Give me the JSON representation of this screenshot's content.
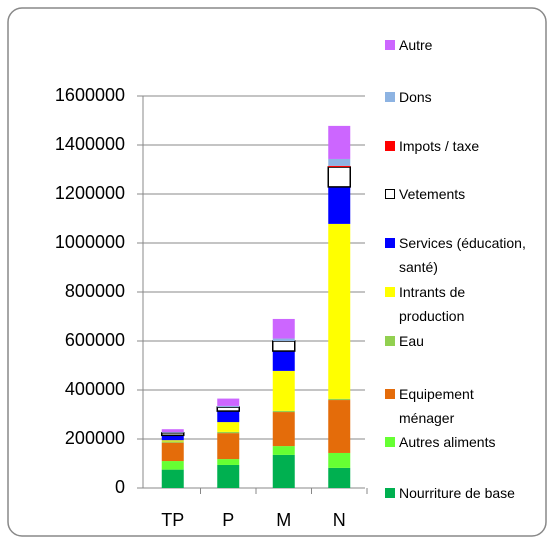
{
  "chart_data": {
    "type": "stacked_bar",
    "categories": [
      "TP",
      "P",
      "M",
      "N"
    ],
    "series": [
      {
        "name": "Nourriture de base",
        "color": "#00b050",
        "values": [
          75000,
          94000,
          135000,
          82000
        ]
      },
      {
        "name": "Autres aliments",
        "color": "#66ff33",
        "values": [
          35000,
          24000,
          36000,
          61000
        ]
      },
      {
        "name": "Equipement ménager",
        "color": "#e46c0a",
        "values": [
          75000,
          106000,
          139000,
          216000
        ]
      },
      {
        "name": "Eau",
        "color": "#92d050",
        "values": [
          5000,
          5000,
          5000,
          5000
        ]
      },
      {
        "name": "Intrants de production",
        "color": "#ffff00",
        "values": [
          5000,
          40000,
          163000,
          714000
        ]
      },
      {
        "name": "Services (éducation, santé)",
        "color": "#0000ff",
        "values": [
          20000,
          45000,
          81000,
          151000
        ]
      },
      {
        "name": "Vetements",
        "color": "#ffffff",
        "values": [
          10000,
          16000,
          41000,
          81000
        ]
      },
      {
        "name": "Impots / taxe",
        "color": "#ff0000",
        "values": [
          0,
          0,
          0,
          5000
        ]
      },
      {
        "name": "Dons",
        "color": "#8db3e2",
        "values": [
          3000,
          5000,
          10000,
          28000
        ]
      },
      {
        "name": "Autre",
        "color": "#cc66ff",
        "values": [
          12000,
          30000,
          80000,
          135000
        ]
      }
    ],
    "ylim": [
      0,
      1600000
    ],
    "yticks": [
      0,
      200000,
      400000,
      600000,
      800000,
      1000000,
      1200000,
      1400000,
      1600000
    ],
    "grid": true
  }
}
